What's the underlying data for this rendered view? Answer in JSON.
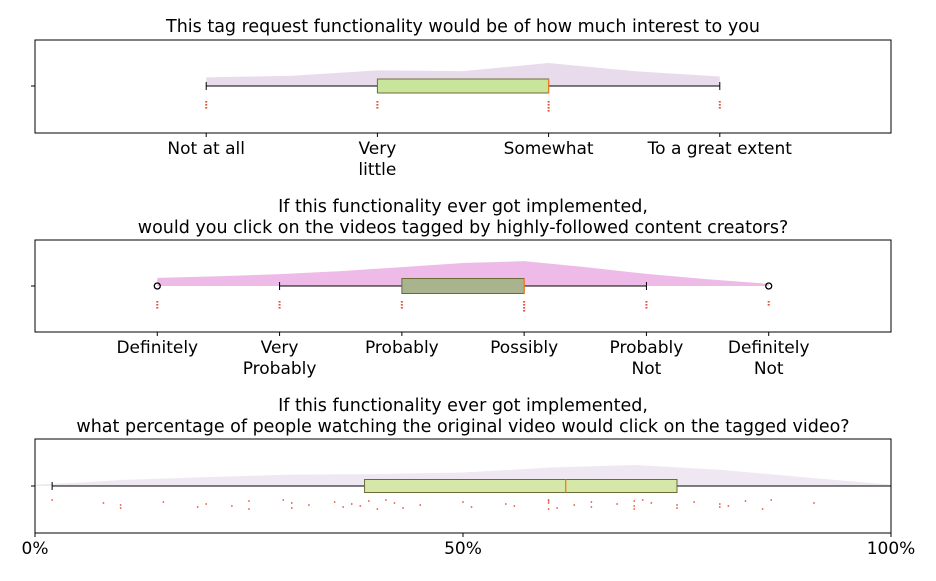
{
  "chart_data": [
    {
      "type": "box-violin",
      "title_lines": [
        "This tag request functionality would be of how much interest to you"
      ],
      "categories": [
        "Not at all",
        "Very little",
        "Somewhat",
        "To a great extent"
      ],
      "category_lines": [
        [
          "Not at all"
        ],
        [
          "Very",
          "little"
        ],
        [
          "Somewhat"
        ],
        [
          "To a great extent"
        ]
      ],
      "xlim": [
        -1,
        4
      ],
      "box": {
        "whisker_low": 0,
        "q1": 1,
        "median": 2,
        "q3": 2,
        "whisker_high": 3
      },
      "outliers": [],
      "violin_density": [
        [
          0,
          0.32
        ],
        [
          0.5,
          0.38
        ],
        [
          1,
          0.58
        ],
        [
          1.5,
          0.55
        ],
        [
          2,
          0.85
        ],
        [
          2.5,
          0.55
        ],
        [
          3,
          0.35
        ]
      ],
      "violin_color": "#e6d8ea",
      "box_color": "#c9e59b",
      "points": [
        {
          "x": 0,
          "n": 3
        },
        {
          "x": 1,
          "n": 3
        },
        {
          "x": 2,
          "n": 4
        },
        {
          "x": 3,
          "n": 3
        }
      ]
    },
    {
      "type": "box-violin",
      "title_lines": [
        "If this functionality ever got implemented,",
        "would you click on the videos tagged by highly-followed content creators?"
      ],
      "categories": [
        "Definitely",
        "Very Probably",
        "Probably",
        "Possibly",
        "Probably Not",
        "Definitely Not"
      ],
      "category_lines": [
        [
          "Definitely"
        ],
        [
          "Very",
          "Probably"
        ],
        [
          "Probably"
        ],
        [
          "Possibly"
        ],
        [
          "Probably",
          "Not"
        ],
        [
          "Definitely",
          "Not"
        ]
      ],
      "xlim": [
        -1,
        6
      ],
      "box": {
        "whisker_low": 1,
        "q1": 2,
        "median": 3,
        "q3": 3,
        "whisker_high": 4
      },
      "outliers": [
        0,
        5
      ],
      "violin_density": [
        [
          0,
          0.3
        ],
        [
          0.5,
          0.36
        ],
        [
          1,
          0.44
        ],
        [
          1.5,
          0.55
        ],
        [
          2,
          0.7
        ],
        [
          2.5,
          0.85
        ],
        [
          3,
          0.92
        ],
        [
          3.5,
          0.7
        ],
        [
          4,
          0.45
        ],
        [
          4.5,
          0.25
        ],
        [
          5,
          0.08
        ]
      ],
      "violin_color": "#ecb4e6",
      "box_color": "#a9b38d",
      "points": [
        {
          "x": 0,
          "n": 3
        },
        {
          "x": 1,
          "n": 3
        },
        {
          "x": 2,
          "n": 3
        },
        {
          "x": 3,
          "n": 4
        },
        {
          "x": 4,
          "n": 3
        },
        {
          "x": 5,
          "n": 2
        }
      ]
    },
    {
      "type": "box-violin",
      "title_lines": [
        "If this functionality ever got implemented,",
        "what percentage of people watching the original video would click on the tagged video?"
      ],
      "tick_labels": [
        "0%",
        "50%",
        "100%"
      ],
      "tick_values": [
        0,
        50,
        100
      ],
      "xlim": [
        0,
        100
      ],
      "box": {
        "whisker_low": 2,
        "q1": 38.5,
        "median": 62,
        "q3": 75,
        "whisker_high": 100
      },
      "outliers": [],
      "violin_density": [
        [
          0,
          0.05
        ],
        [
          5,
          0.12
        ],
        [
          10,
          0.22
        ],
        [
          20,
          0.33
        ],
        [
          30,
          0.42
        ],
        [
          40,
          0.44
        ],
        [
          50,
          0.5
        ],
        [
          60,
          0.68
        ],
        [
          70,
          0.78
        ],
        [
          80,
          0.6
        ],
        [
          90,
          0.32
        ],
        [
          100,
          0.05
        ]
      ],
      "violin_color": "#ede4ef",
      "box_color": "#d6e8a7",
      "scatter_x": [
        2,
        8,
        10,
        10,
        15,
        19,
        20,
        23,
        25,
        25,
        29,
        30,
        30,
        32,
        35,
        36,
        37,
        38,
        39,
        40,
        41,
        42,
        43,
        45,
        50,
        51,
        55,
        56,
        60,
        60,
        60,
        60,
        61,
        63,
        65,
        65,
        68,
        70,
        70,
        70,
        71,
        72,
        75,
        75,
        77,
        80,
        80,
        81,
        83,
        85,
        86,
        91
      ]
    }
  ]
}
